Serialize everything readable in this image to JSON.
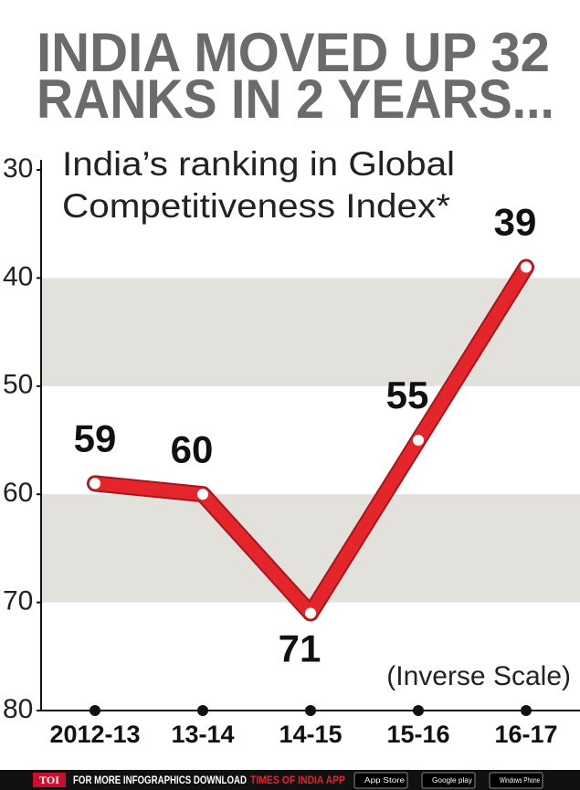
{
  "chart_data": {
    "type": "line",
    "title": [
      "INDIA MOVED UP 32",
      "RANKS IN 2 YEARS..."
    ],
    "subtitle": [
      "India’s ranking in Global",
      "Competitiveness Index*"
    ],
    "annotation": "(Inverse Scale)",
    "categories": [
      "2012-13",
      "13-14",
      "14-15",
      "15-16",
      "16-17"
    ],
    "values": [
      59,
      60,
      71,
      55,
      39
    ],
    "color": "#e4252b",
    "ylim": [
      30,
      80
    ],
    "yticks": [
      30,
      40,
      50,
      60,
      70,
      80
    ],
    "y_inverted": true,
    "band_color": "#e3e1dc"
  },
  "footer": {
    "brand": "TOI",
    "text": "FOR MORE  INFOGRAPHICS DOWNLOAD",
    "app": "TIMES OF INDIA APP",
    "badges": [
      "App Store",
      "Google play",
      "Windows Phone"
    ]
  }
}
